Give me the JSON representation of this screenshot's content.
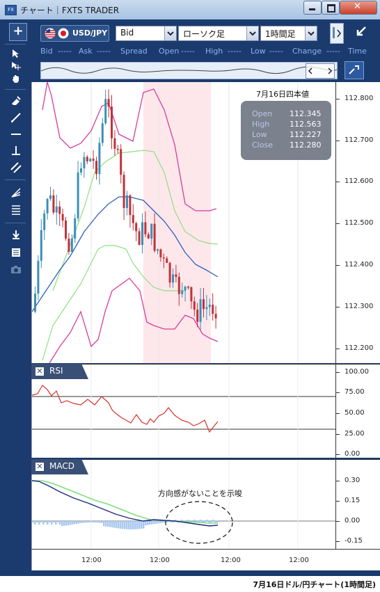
{
  "window": {
    "title": "チャート｜FXTS TRADER",
    "app_icon_text": "FX"
  },
  "toolbar": {
    "pair": "USD/JPY",
    "price_type": "Bid",
    "chart_type": "ローソク足",
    "timeframe": "1時間足"
  },
  "quote_row": [
    "Bid",
    "-----",
    "Ask",
    "-----",
    "Spread",
    "Open",
    "-----",
    "High",
    "-----",
    "Low",
    "-----",
    "Change",
    "-----",
    "Time"
  ],
  "price_panel": {
    "title": "7月16日四本値",
    "open_label": "Open",
    "open": "112.345",
    "high_label": "High",
    "high": "112.563",
    "low_label": "Low",
    "low": "112.227",
    "close_label": "Close",
    "close": "112.280"
  },
  "price_axis": [
    "112.800",
    "112.700",
    "112.600",
    "112.500",
    "112.400",
    "112.300",
    "112.200"
  ],
  "rsi": {
    "label": "RSI",
    "axis": [
      "100.00",
      "75.00",
      "50.00",
      "25.00",
      "0.00"
    ]
  },
  "macd": {
    "label": "MACD",
    "axis": [
      "0.30",
      "0.15",
      "0.00",
      "-0.15"
    ],
    "annotation": "方向感がないことを示唆"
  },
  "time_axis": [
    "12:00",
    "12:00",
    "12:00",
    "12:00"
  ],
  "caption": "7月16日ドル/円チャート(1時間足)",
  "colors": {
    "frame": "#1b3a6e",
    "up": "#3c8fb7",
    "down": "#c0323a",
    "bb_outer": "#d43d9c",
    "bb_mid": "#8fe07f",
    "ma": "#2d5fbf",
    "rsi": "#d7302a",
    "macd": "#1a2a80",
    "signal": "#7de07a",
    "hist": "#a9c8ef",
    "highlight": "#fde7ea"
  }
}
